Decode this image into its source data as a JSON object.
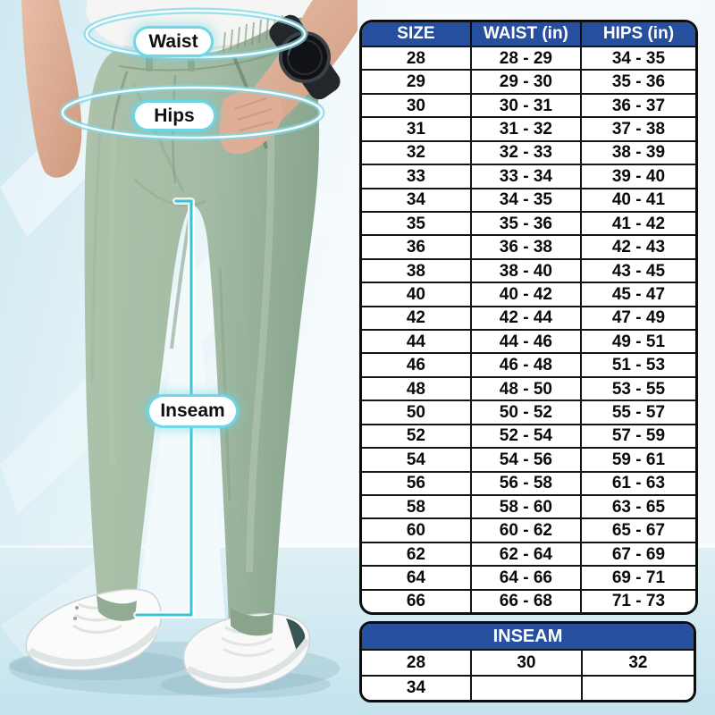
{
  "scene": {
    "annotations": {
      "waist": "Waist",
      "hips": "Hips",
      "inseam": "Inseam"
    },
    "colors": {
      "accent_cyan": "#5fd0e2",
      "table_header_blue": "#26509f",
      "pants_green": "#a3bba4",
      "background_blue": "#d9edf4"
    }
  },
  "size_table": {
    "headers": [
      "SIZE",
      "WAIST (in)",
      "HIPS (in)"
    ],
    "rows": [
      [
        "28",
        "28 - 29",
        "34 - 35"
      ],
      [
        "29",
        "29 - 30",
        "35 - 36"
      ],
      [
        "30",
        "30 - 31",
        "36 - 37"
      ],
      [
        "31",
        "31 - 32",
        "37 - 38"
      ],
      [
        "32",
        "32 - 33",
        "38 - 39"
      ],
      [
        "33",
        "33 - 34",
        "39 - 40"
      ],
      [
        "34",
        "34 - 35",
        "40 - 41"
      ],
      [
        "35",
        "35 - 36",
        "41 - 42"
      ],
      [
        "36",
        "36 - 38",
        "42 - 43"
      ],
      [
        "38",
        "38 - 40",
        "43 - 45"
      ],
      [
        "40",
        "40 - 42",
        "45 - 47"
      ],
      [
        "42",
        "42 - 44",
        "47 - 49"
      ],
      [
        "44",
        "44 - 46",
        "49 - 51"
      ],
      [
        "46",
        "46 - 48",
        "51 - 53"
      ],
      [
        "48",
        "48 - 50",
        "53 - 55"
      ],
      [
        "50",
        "50 - 52",
        "55 - 57"
      ],
      [
        "52",
        "52 - 54",
        "57 - 59"
      ],
      [
        "54",
        "54 - 56",
        "59 - 61"
      ],
      [
        "56",
        "56 - 58",
        "61 - 63"
      ],
      [
        "58",
        "58 - 60",
        "63 - 65"
      ],
      [
        "60",
        "60 - 62",
        "65 - 67"
      ],
      [
        "62",
        "62 - 64",
        "67 - 69"
      ],
      [
        "64",
        "64 - 66",
        "69 - 71"
      ],
      [
        "66",
        "66 - 68",
        "71 - 73"
      ]
    ]
  },
  "inseam_table": {
    "title": "INSEAM",
    "rows": [
      [
        "28",
        "30",
        "32"
      ],
      [
        "34",
        "",
        ""
      ]
    ]
  }
}
